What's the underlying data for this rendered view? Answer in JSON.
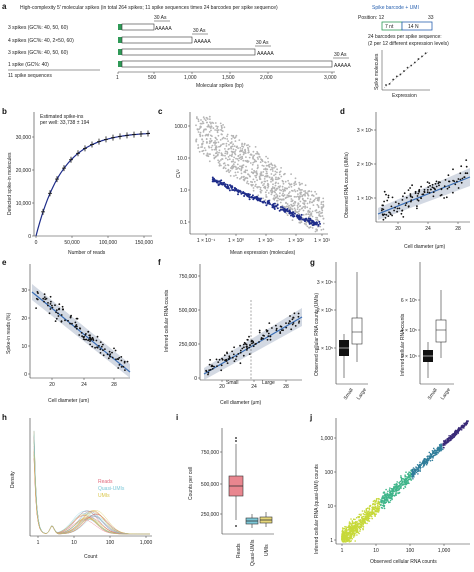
{
  "panel_labels": [
    "a",
    "b",
    "c",
    "d",
    "e",
    "f",
    "g",
    "h",
    "i",
    "j"
  ],
  "panel_a": {
    "title": "High-complexity 5' molecular spikes (in total 264 spikes; 11 spike sequences times 24 barcodes per spike sequence)",
    "rows": [
      {
        "label": "3 spikes (GC%: 40, 50, 60)",
        "polyA": "30 As",
        "tail": "AAAAA"
      },
      {
        "label": "4 spikes (GC%: 40, 2×50, 60)",
        "polyA": "30 As",
        "tail": "AAAAA"
      },
      {
        "label": "3 spikes (GC%: 40, 50, 60)",
        "polyA": "30 As",
        "tail": "AAAAA"
      },
      {
        "label": "1 spike (GC%: 40)",
        "polyA": "30 As",
        "tail": "AAAAA"
      }
    ],
    "total_label": "11 spike sequences",
    "axis_ticks": [
      "1",
      "500",
      "1,000",
      "1,500",
      "2,000",
      "3,000"
    ],
    "axis_label": "Molecular spikes (bp)",
    "barcode_legend": "Spike barcode + UMI",
    "position_label": "Position: 12",
    "position_end": "33",
    "seg1": "7 nt",
    "seg2": "14 N",
    "barcode_note_1": "24 barcodes per spike sequence:",
    "barcode_note_2": "(2 per 12 different expression levels)",
    "inset_ylabel": "Spike molecules",
    "inset_xlabel": "Expression"
  },
  "panel_b": {
    "annotation_1": "Estimated spike-ins",
    "annotation_2": "per well: 33,738 ± 194",
    "ylabel": "Detected spike-in molecules",
    "xlabel": "Number of reads",
    "yticks": [
      "0",
      "10,000",
      "20,000",
      "30,000"
    ],
    "xticks": [
      "0",
      "50,000",
      "100,000",
      "150,000"
    ]
  },
  "panel_c": {
    "ylabel": "CV²",
    "xlabel": "Mean expression (molecules)",
    "yticks": [
      "100.0",
      "10.0",
      "1.0",
      "0.1"
    ],
    "xticks": [
      "1 × 10⁻¹",
      "1 × 10⁰",
      "1 × 10¹",
      "1 × 10²",
      "1 × 10³"
    ]
  },
  "panel_d": {
    "ylabel": "Observed RNA counts (UMIs)",
    "xlabel": "Cell diameter (μm)",
    "yticks": [
      "1 × 10⁵",
      "2 × 10⁵",
      "3 × 10⁵"
    ],
    "xticks": [
      "20",
      "24",
      "28"
    ]
  },
  "panel_e": {
    "ylabel": "Spike-in reads (%)",
    "xlabel": "Cell diameter (um)",
    "yticks": [
      "0",
      "10",
      "20",
      "30"
    ],
    "xticks": [
      "20",
      "24",
      "28"
    ]
  },
  "panel_f": {
    "ylabel": "Inferred cellular RNA counts",
    "xlabel": "Cell diameter (μm)",
    "yticks": [
      "0",
      "250,000",
      "500,000",
      "750,000"
    ],
    "xticks": [
      "20",
      "24",
      "28"
    ],
    "annot_small": "Small",
    "annot_large": "Large"
  },
  "panel_g": {
    "left_ylabel": "Observed cellular RNA counts (UMIs)",
    "left_yticks": [
      "1 × 10⁵",
      "2 × 10⁵",
      "3 × 10⁵"
    ],
    "right_ylabel": "Inferred cellular RNA counts",
    "right_yticks": [
      "2 × 10⁵",
      "4 × 10⁵",
      "6 × 10⁵"
    ],
    "categories": [
      "Small",
      "Large"
    ]
  },
  "panel_h": {
    "ylabel": "Density",
    "xlabel": "Count",
    "xticks": [
      "1",
      "10",
      "100",
      "1,000"
    ],
    "legend": [
      {
        "name": "Reads",
        "color": "#e0677a"
      },
      {
        "name": "Quasi-UMIs",
        "color": "#7cc8d8"
      },
      {
        "name": "UMIs",
        "color": "#d9c64a"
      }
    ]
  },
  "panel_i": {
    "ylabel": "Counts per cell",
    "yticks": [
      "250,000",
      "500,000",
      "750,000"
    ],
    "categories": [
      "Reads",
      "Quasi-UMIs",
      "UMIs"
    ]
  },
  "panel_j": {
    "ylabel": "Inferred cellular RNA (quasi-UMI) counts",
    "xlabel": "Observed cellular RNA counts",
    "xticks": [
      "1",
      "10",
      "100",
      "1,000"
    ],
    "yticks": [
      "1",
      "10",
      "100",
      "1,000"
    ]
  },
  "colors": {
    "navy": "#1f2d8a",
    "gray": "#b4b4b4",
    "fit": "#3b6fb6",
    "band": "#c8d0dc",
    "green": "#2f9a57",
    "box_dark": "#111111",
    "box_reads": "#e9868f"
  }
}
